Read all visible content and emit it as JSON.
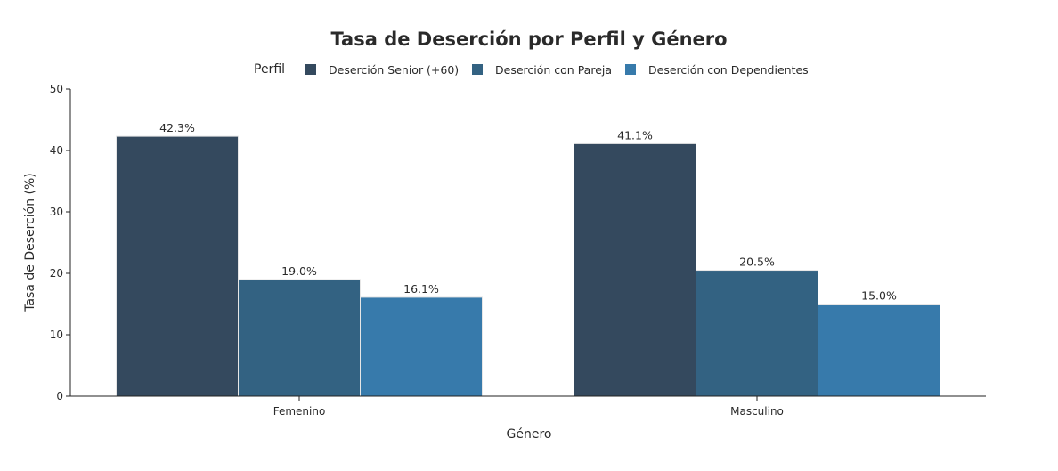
{
  "chart_data": {
    "type": "bar",
    "title": "Tasa de Deserción por Perfil y Género",
    "xlabel": "Género",
    "ylabel": "Tasa de Deserción (%)",
    "ylim": [
      0,
      50
    ],
    "yticks": [
      0,
      10,
      20,
      30,
      40,
      50
    ],
    "grid": false,
    "legend_title": "Perfil",
    "legend_placement": "top",
    "categories": [
      "Femenino",
      "Masculino"
    ],
    "series": [
      {
        "name": "Deserción Senior (+60)",
        "values": [
          42.3,
          41.1
        ],
        "color": "#34495e",
        "labels": [
          "42.3%",
          "41.1%"
        ]
      },
      {
        "name": "Deserción con Pareja",
        "values": [
          19.0,
          20.5
        ],
        "color": "#336282",
        "labels": [
          "19.0%",
          "20.5%"
        ]
      },
      {
        "name": "Deserción con Dependientes",
        "values": [
          16.1,
          15.0
        ],
        "color": "#377aab",
        "labels": [
          "16.1%",
          "15.0%"
        ]
      }
    ]
  }
}
